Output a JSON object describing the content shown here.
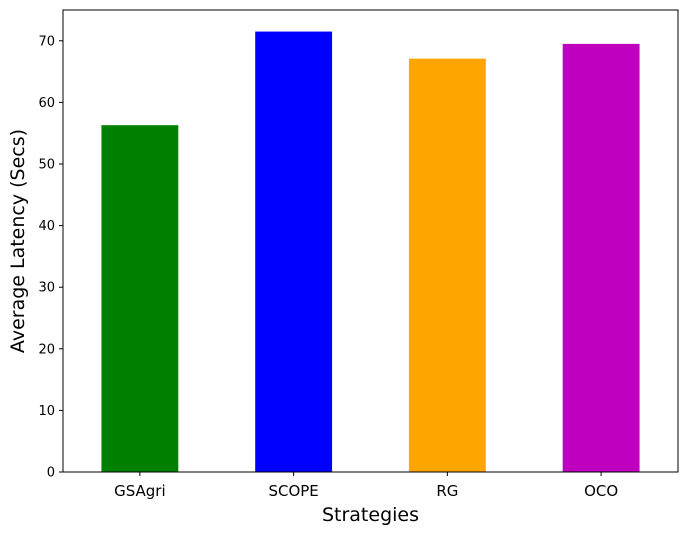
{
  "chart_data": {
    "type": "bar",
    "categories": [
      "GSAgri",
      "SCOPE",
      "RG",
      "OCO"
    ],
    "values": [
      56.3,
      71.5,
      67.1,
      69.5
    ],
    "colors": [
      "#008000",
      "#0000ff",
      "#ffa500",
      "#bf00bf"
    ],
    "title": "",
    "xlabel": "Strategies",
    "ylabel": "Average Latency (Secs)",
    "ylim": [
      0,
      75
    ],
    "yticks": [
      0,
      10,
      20,
      30,
      40,
      50,
      60,
      70
    ],
    "grid": false,
    "legend": "none"
  }
}
